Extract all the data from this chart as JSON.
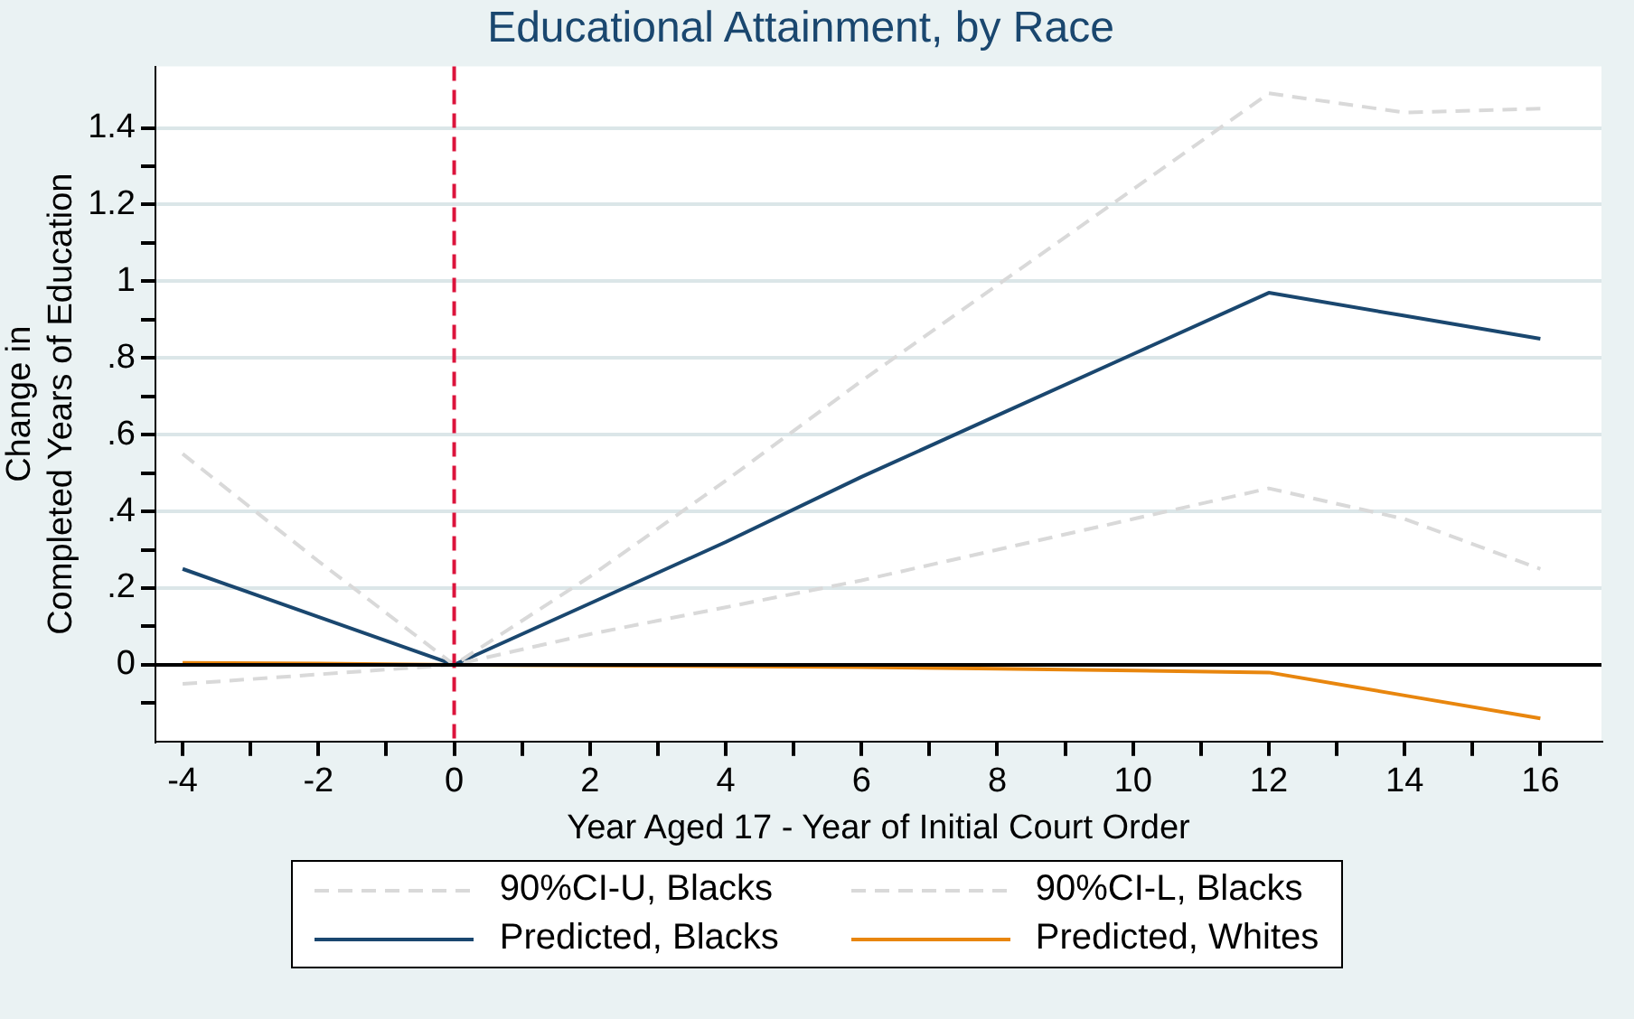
{
  "chart_data": {
    "type": "line",
    "title": "Educational Attainment, by Race",
    "xlabel": "Year Aged 17 - Year of Initial Court Order",
    "ylabel": "Change in\nCompleted Years of Education",
    "x": [
      -4,
      -2,
      0,
      2,
      4,
      6,
      8,
      10,
      12,
      14,
      16
    ],
    "series": [
      {
        "name": "90%CI-U, Blacks",
        "color": "#d9d9d9",
        "line_style": "dashed",
        "values": [
          0.55,
          0.27,
          0,
          0.23,
          0.48,
          0.74,
          0.99,
          1.24,
          1.49,
          1.44,
          1.45
        ]
      },
      {
        "name": "90%CI-L, Blacks",
        "color": "#d9d9d9",
        "line_style": "dashed",
        "values": [
          -0.05,
          -0.025,
          0,
          0.08,
          0.15,
          0.22,
          0.3,
          0.38,
          0.46,
          0.38,
          0.25
        ]
      },
      {
        "name": "Predicted, Blacks",
        "color": "#1a476f",
        "line_style": "solid",
        "values": [
          0.25,
          0.125,
          0,
          0.16,
          0.32,
          0.49,
          0.65,
          0.81,
          0.97,
          0.91,
          0.85
        ]
      },
      {
        "name": "Predicted, Whites",
        "color": "#e8860e",
        "line_style": "solid",
        "values": [
          0.005,
          0.003,
          0,
          -0.002,
          -0.004,
          -0.006,
          -0.01,
          -0.015,
          -0.02,
          -0.08,
          -0.14
        ]
      }
    ],
    "xlim": [
      -4.4,
      16.9
    ],
    "ylim": [
      -0.2,
      1.56
    ],
    "xticks": [
      -4,
      {
        "value": -3,
        "label": null
      },
      -2,
      {
        "value": -1,
        "label": null
      },
      0,
      {
        "value": 1,
        "label": null
      },
      2,
      {
        "value": 3,
        "label": null
      },
      4,
      {
        "value": 5,
        "label": null
      },
      6,
      {
        "value": 7,
        "label": null
      },
      8,
      {
        "value": 9,
        "label": null
      },
      10,
      {
        "value": 11,
        "label": null
      },
      12,
      {
        "value": 13,
        "label": null
      },
      14,
      {
        "value": 15,
        "label": null
      },
      16
    ],
    "yticks": [
      {
        "value": -0.1,
        "label": null
      },
      0,
      {
        "value": 0.1,
        "label": null
      },
      {
        "value": 0.2,
        "label": ".2"
      },
      {
        "value": 0.3,
        "label": null
      },
      {
        "value": 0.4,
        "label": ".4"
      },
      {
        "value": 0.5,
        "label": null
      },
      {
        "value": 0.6,
        "label": ".6"
      },
      {
        "value": 0.7,
        "label": null
      },
      {
        "value": 0.8,
        "label": ".8"
      },
      {
        "value": 0.9,
        "label": null
      },
      1,
      {
        "value": 1.1,
        "label": null
      },
      1.2,
      {
        "value": 1.3,
        "label": null
      },
      1.4
    ],
    "ref_lines": [
      {
        "axis": "x",
        "value": 0,
        "color": "#dc143c",
        "line_style": "dashed"
      },
      {
        "axis": "y",
        "value": 0,
        "color": "#000000",
        "line_style": "solid"
      }
    ],
    "grid": "y",
    "legend": "bottom",
    "marker": "none"
  }
}
